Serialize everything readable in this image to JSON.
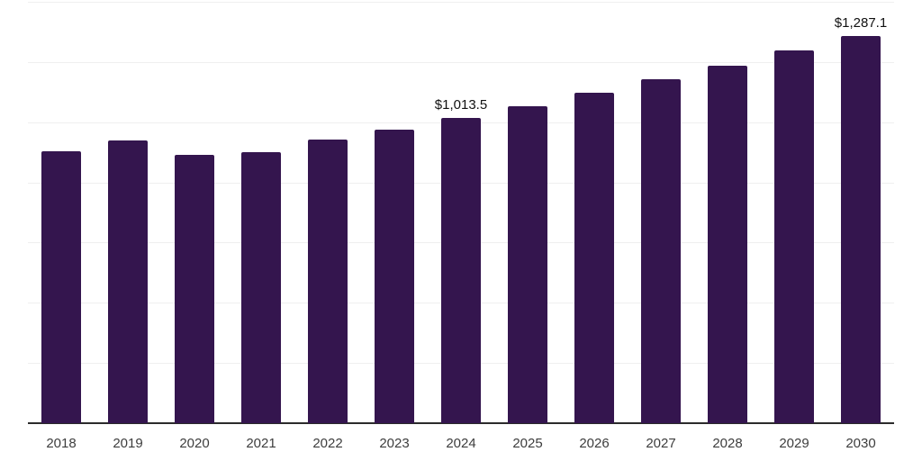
{
  "chart_data": {
    "type": "bar",
    "title": "",
    "xlabel": "",
    "ylabel": "",
    "categories": [
      "2018",
      "2019",
      "2020",
      "2021",
      "2022",
      "2023",
      "2024",
      "2025",
      "2026",
      "2027",
      "2028",
      "2029",
      "2030"
    ],
    "values": [
      903,
      939,
      890,
      901,
      941,
      975,
      1013.5,
      1054,
      1097,
      1142,
      1188,
      1237,
      1287.1
    ],
    "data_labels": [
      {
        "category": "2024",
        "text": "$1,013.5"
      },
      {
        "category": "2030",
        "text": "$1,287.1"
      }
    ],
    "ylim": [
      0,
      1400
    ],
    "gridline_step": 200,
    "grid": true,
    "legend": "none",
    "y_axis_tick_labels_shown": false,
    "colors": {
      "bar": "#34154e",
      "gridline": "#efefef",
      "axis_line": "#2b2b2b",
      "tick_label": "#3d3d3d",
      "data_label": "#111111",
      "background": "#ffffff"
    }
  }
}
